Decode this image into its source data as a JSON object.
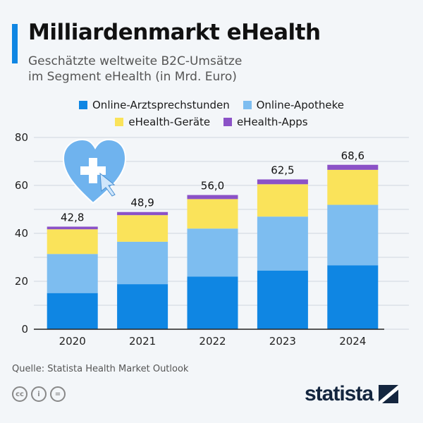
{
  "header": {
    "title": "Milliardenmarkt eHealth",
    "subtitle_line1": "Geschätzte weltweite B2C-Umsätze",
    "subtitle_line2": "im Segment eHealth (in Mrd. Euro)"
  },
  "footer": {
    "source": "Quelle: Statista Health Market Outlook",
    "logo": "statista",
    "license_icons": [
      "cc-icon",
      "by-icon",
      "nd-icon"
    ]
  },
  "colors": {
    "accent": "#0f86e3"
  },
  "chart_data": {
    "type": "bar",
    "stacked": true,
    "categories": [
      "2020",
      "2021",
      "2022",
      "2023",
      "2024"
    ],
    "series": [
      {
        "name": "Online-Arztsprechstunden",
        "color": "#0f86e3",
        "values": [
          15.1,
          18.8,
          22.0,
          24.5,
          26.7
        ]
      },
      {
        "name": "Online-Apotheke",
        "color": "#7dbdf0",
        "values": [
          16.3,
          17.7,
          20.0,
          22.5,
          25.2
        ]
      },
      {
        "name": "eHealth-Geräte",
        "color": "#fae35a",
        "values": [
          10.3,
          11.1,
          12.3,
          13.5,
          14.6
        ]
      },
      {
        "name": "eHealth-Apps",
        "color": "#8b52c7",
        "values": [
          1.1,
          1.3,
          1.7,
          2.0,
          2.1
        ]
      }
    ],
    "totals": [
      "42,8",
      "48,9",
      "56,0",
      "62,5",
      "68,6"
    ],
    "yticks": [
      "0",
      "20",
      "40",
      "60",
      "80"
    ],
    "ylim": [
      0,
      80
    ],
    "grid": true,
    "legend": "top",
    "xlabel": "",
    "ylabel": "",
    "title": ""
  }
}
